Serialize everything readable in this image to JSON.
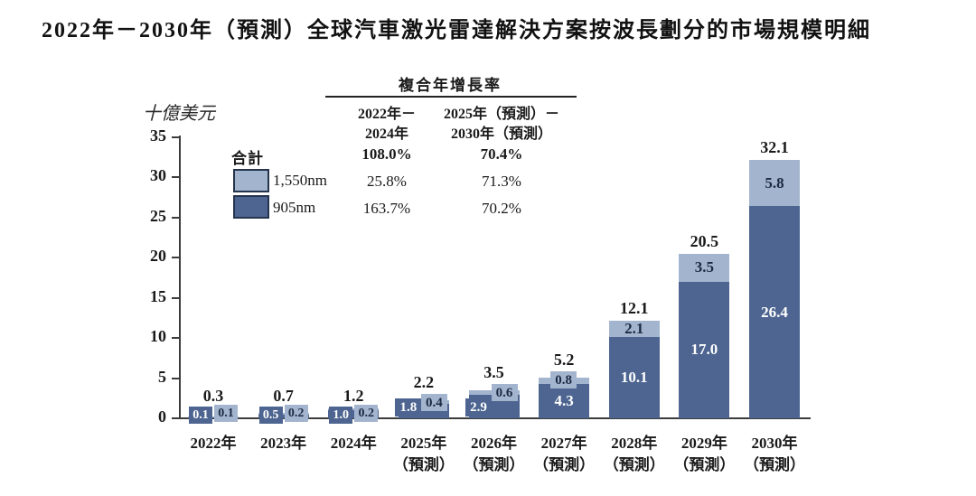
{
  "title": "2022年－2030年（預測）全球汽車激光雷達解決方案按波長劃分的市場規模明細",
  "cagr_table": {
    "header": "複合年增長率",
    "col_headers": [
      [
        "2022年－",
        "2024年"
      ],
      [
        "2025年（預測）－",
        "2030年（預測）"
      ]
    ],
    "rows": [
      {
        "label": "合計",
        "bold": true,
        "values": [
          "108.0%",
          "70.4%"
        ]
      },
      {
        "label": "1,550nm",
        "bold": false,
        "values": [
          "25.8%",
          "71.3%"
        ]
      },
      {
        "label": "905nm",
        "bold": false,
        "values": [
          "163.7%",
          "70.2%"
        ]
      }
    ]
  },
  "chart_data": {
    "type": "bar",
    "stacked": true,
    "title": "2022年－2030年（預測）全球汽車激光雷達解決方案按波長劃分的市場規模明細",
    "ylabel": "十億美元",
    "xlabel": "",
    "ylim": [
      0,
      35
    ],
    "yticks": [
      0,
      5,
      10,
      15,
      20,
      25,
      30,
      35
    ],
    "grid": false,
    "legend_position": "top-left",
    "legend_total_label": "合計",
    "categories": [
      [
        "2022年"
      ],
      [
        "2023年"
      ],
      [
        "2024年"
      ],
      [
        "2025年",
        "（預測）"
      ],
      [
        "2026年",
        "（預測）"
      ],
      [
        "2027年",
        "（預測）"
      ],
      [
        "2028年",
        "（預測）"
      ],
      [
        "2029年",
        "（預測）"
      ],
      [
        "2030年",
        "（預測）"
      ]
    ],
    "series": [
      {
        "name": "905nm",
        "color": "#4d6590",
        "values": [
          0.1,
          0.5,
          1.0,
          1.8,
          2.9,
          4.3,
          10.1,
          17.0,
          26.4
        ],
        "labels": [
          "0.1",
          "0.5",
          "1.0",
          "1.8",
          "2.9",
          "4.3",
          "10.1",
          "17.0",
          "26.4"
        ]
      },
      {
        "name": "1,550nm",
        "color": "#a3b5ce",
        "values": [
          0.1,
          0.2,
          0.2,
          0.4,
          0.6,
          0.8,
          2.1,
          3.5,
          5.8
        ],
        "labels": [
          "0.1",
          "0.2",
          "0.2",
          "0.4",
          "0.6",
          "0.8",
          "2.1",
          "3.5",
          "5.8"
        ]
      }
    ],
    "totals": [
      0.3,
      0.7,
      1.2,
      2.2,
      3.5,
      5.2,
      12.1,
      20.5,
      32.1
    ],
    "totals_labels": [
      "0.3",
      "0.7",
      "1.2",
      "2.2",
      "3.5",
      "5.2",
      "12.1",
      "20.5",
      "32.1"
    ]
  }
}
